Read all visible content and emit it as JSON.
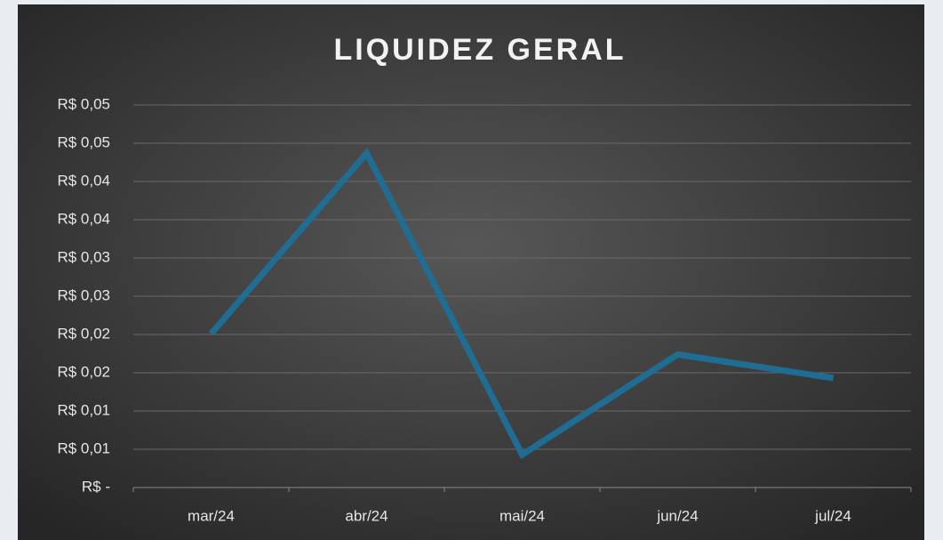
{
  "chart_data": {
    "type": "line",
    "title": "LIQUIDEZ GERAL",
    "categories": [
      "mar/24",
      "abr/24",
      "mai/24",
      "jun/24",
      "jul/24"
    ],
    "series": [
      {
        "name": "Liquidez Geral",
        "color": "#1f6d93",
        "values": [
          0.0201,
          0.0437,
          0.0043,
          0.0174,
          0.0143
        ]
      }
    ],
    "ylim": [
      0,
      0.05
    ],
    "yticks": [
      {
        "value": 0,
        "label": "R$ -"
      },
      {
        "value": 0.005,
        "label": "R$ 0,01"
      },
      {
        "value": 0.01,
        "label": "R$ 0,01"
      },
      {
        "value": 0.015,
        "label": "R$ 0,02"
      },
      {
        "value": 0.02,
        "label": "R$ 0,02"
      },
      {
        "value": 0.025,
        "label": "R$ 0,03"
      },
      {
        "value": 0.03,
        "label": "R$ 0,03"
      },
      {
        "value": 0.035,
        "label": "R$ 0,04"
      },
      {
        "value": 0.04,
        "label": "R$ 0,04"
      },
      {
        "value": 0.045,
        "label": "R$ 0,05"
      },
      {
        "value": 0.05,
        "label": "R$ 0,05"
      }
    ],
    "grid": true
  }
}
